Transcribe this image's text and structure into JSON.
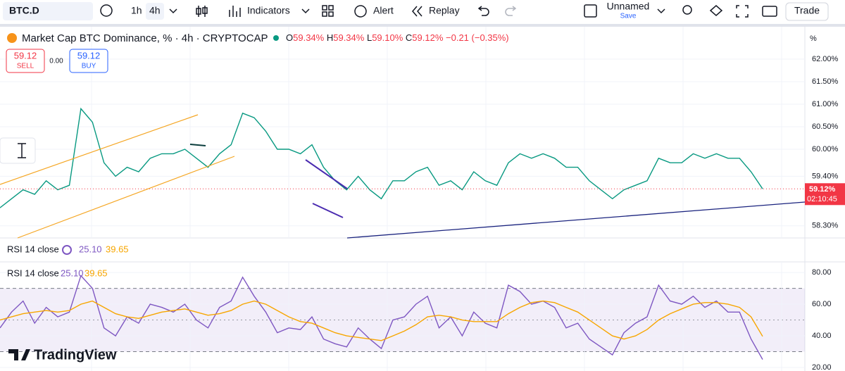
{
  "toolbar": {
    "symbol": "BTC.D",
    "intervals": [
      "1h",
      "4h"
    ],
    "indicators": "Indicators",
    "alert": "Alert",
    "replay": "Replay",
    "layout": "Unnamed",
    "save": "Save",
    "trade": "Trade"
  },
  "brand": "TradingView",
  "chart_data": [
    {
      "type": "line",
      "title": "Market Cap BTC Dominance, % · 4h · CRYPTOCAP",
      "ohlc": [
        {
          "label": "O",
          "value": "59.34%"
        },
        {
          "label": "H",
          "value": "59.34%"
        },
        {
          "label": "L",
          "value": "59.10%"
        },
        {
          "label": "C",
          "value": "59.12%"
        }
      ],
      "change": "−0.21 (−0.35%)",
      "trade_panel": {
        "sell_price": "59.12",
        "sell": "SELL",
        "spread": "0.00",
        "buy_price": "59.12",
        "buy": "BUY"
      },
      "unit": "%",
      "last_price_label": "59.12%",
      "countdown": "02:10:45",
      "categories": [
        null,
        null,
        null,
        null,
        null,
        null,
        null,
        null,
        null,
        null,
        null,
        null,
        null,
        null,
        null,
        null,
        null,
        null,
        null,
        null,
        null,
        null,
        null,
        null,
        null,
        null,
        null,
        null,
        null,
        null,
        null,
        null,
        null,
        null,
        null,
        null,
        null,
        null,
        null,
        null,
        null,
        null,
        null,
        null,
        null,
        null,
        null,
        null,
        null,
        null,
        null,
        null,
        null,
        null,
        null,
        null,
        null,
        null,
        null,
        null,
        null,
        null,
        null,
        null,
        null,
        null,
        null
      ],
      "series": [
        {
          "color": "#089981",
          "values": [
            58.7,
            58.9,
            59.1,
            59.0,
            59.3,
            59.1,
            59.2,
            60.9,
            60.6,
            59.7,
            59.4,
            59.6,
            59.5,
            59.8,
            59.9,
            59.9,
            60.0,
            59.8,
            59.6,
            59.9,
            60.1,
            60.8,
            60.7,
            60.4,
            60.0,
            60.0,
            59.9,
            60.1,
            59.6,
            59.3,
            59.1,
            59.4,
            59.1,
            58.9,
            59.3,
            59.3,
            59.5,
            59.6,
            59.2,
            59.3,
            59.1,
            59.5,
            59.3,
            59.2,
            59.7,
            59.9,
            59.8,
            59.9,
            59.8,
            59.6,
            59.6,
            59.3,
            59.1,
            58.9,
            59.1,
            59.2,
            59.3,
            59.8,
            59.7,
            59.7,
            59.9,
            59.8,
            59.9,
            59.8,
            59.8,
            59.5,
            59.12
          ]
        }
      ],
      "ylim": [
        58.03,
        62.72
      ],
      "yticks": [
        {
          "value": 62,
          "label": "62.00%"
        },
        {
          "value": 61.5,
          "label": "61.50%"
        },
        {
          "value": 61,
          "label": "61.00%"
        },
        {
          "value": 60.5,
          "label": "60.50%"
        },
        {
          "value": 60,
          "label": "60.00%"
        },
        {
          "value": 59.4,
          "label": "59.40%"
        },
        {
          "value": 58.3,
          "label": "58.30%"
        }
      ],
      "grid": true
    },
    {
      "type": "line",
      "title": "RSI 14 close",
      "categories": [
        null,
        null,
        null,
        null,
        null,
        null,
        null,
        null,
        null,
        null,
        null,
        null,
        null,
        null,
        null,
        null,
        null,
        null,
        null,
        null,
        null,
        null,
        null,
        null,
        null,
        null,
        null,
        null,
        null,
        null,
        null,
        null,
        null,
        null,
        null,
        null,
        null,
        null,
        null,
        null,
        null,
        null,
        null,
        null,
        null,
        null,
        null,
        null,
        null,
        null,
        null,
        null,
        null,
        null,
        null,
        null,
        null,
        null,
        null,
        null,
        null,
        null,
        null,
        null,
        null,
        null,
        null
      ],
      "series": [
        {
          "color": "#7e57c2",
          "value_label": "25.10",
          "values": [
            45,
            55,
            62,
            48,
            58,
            52,
            55,
            78,
            70,
            45,
            40,
            52,
            48,
            60,
            58,
            55,
            60,
            50,
            45,
            58,
            62,
            77,
            65,
            55,
            42,
            45,
            44,
            52,
            38,
            35,
            33,
            45,
            38,
            32,
            50,
            52,
            60,
            65,
            45,
            52,
            40,
            55,
            48,
            45,
            72,
            68,
            60,
            62,
            58,
            45,
            48,
            38,
            33,
            28,
            42,
            48,
            52,
            72,
            62,
            60,
            65,
            58,
            62,
            55,
            55,
            38,
            25.1
          ]
        },
        {
          "color": "#f7a600",
          "value_label": "39.65",
          "values": [
            50,
            52,
            54,
            55,
            56,
            55,
            56,
            60,
            62,
            58,
            54,
            52,
            51,
            53,
            55,
            56,
            57,
            55,
            53,
            54,
            56,
            60,
            62,
            60,
            56,
            52,
            49,
            48,
            45,
            42,
            40,
            39,
            38,
            37,
            40,
            43,
            47,
            52,
            53,
            52,
            50,
            49,
            49,
            49,
            54,
            58,
            61,
            62,
            61,
            58,
            55,
            50,
            45,
            40,
            38,
            40,
            44,
            50,
            54,
            57,
            60,
            61,
            61,
            60,
            58,
            52,
            39.65
          ]
        }
      ],
      "band": [
        30,
        70
      ],
      "midline": 50,
      "ylim": [
        17.8,
        86.7
      ],
      "yticks": [
        {
          "value": 80,
          "label": "80.00"
        },
        {
          "value": 60,
          "label": "60.00"
        },
        {
          "value": 40,
          "label": "40.00"
        },
        {
          "value": 20,
          "label": "20.00"
        }
      ],
      "grid": true
    }
  ]
}
